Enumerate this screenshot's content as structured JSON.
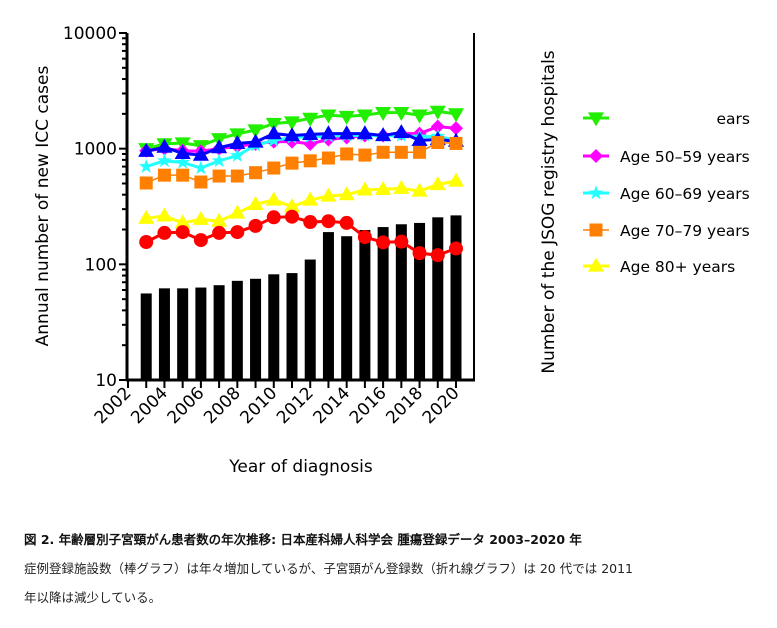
{
  "chart_data": {
    "type": "line",
    "y_scale": "log",
    "ylim": [
      10,
      10000
    ],
    "xlim": [
      2002,
      2020
    ],
    "ylabel": "Annual number of new ICC cases",
    "y2label": "Number of the JSOG registry hospitals",
    "xlabel": "Year of diagnosis",
    "ytick_labels": [
      "10",
      "100",
      "1000",
      "10000"
    ],
    "xtick_labels": [
      "2002",
      "2004",
      "2006",
      "2008",
      "2010",
      "2012",
      "2014",
      "2016",
      "2018",
      "2020"
    ],
    "legend_placement": "right",
    "x": [
      2003,
      2004,
      2005,
      2006,
      2007,
      2008,
      2009,
      2010,
      2011,
      2012,
      2013,
      2014,
      2015,
      2016,
      2017,
      2018,
      2019,
      2020
    ],
    "bars": {
      "key": "hospitals",
      "color": "#000000",
      "values": [
        56,
        62,
        62,
        63,
        66,
        72,
        75,
        82,
        84,
        110,
        190,
        175,
        198,
        210,
        222,
        228,
        255,
        265
      ]
    },
    "series": [
      {
        "key": "green",
        "legend": "ears",
        "color": "#22ee00",
        "marker": "triangle-down",
        "values": [
          1000,
          1100,
          1120,
          1060,
          1220,
          1340,
          1450,
          1650,
          1700,
          1830,
          1950,
          1900,
          1950,
          2050,
          2050,
          1950,
          2100,
          2000
        ]
      },
      {
        "key": "magenta",
        "legend": "Age 50–59 years",
        "color": "#ff00ff",
        "marker": "diamond",
        "values": [
          960,
          1000,
          960,
          950,
          1000,
          1050,
          1100,
          1150,
          1150,
          1100,
          1200,
          1250,
          1300,
          1300,
          1350,
          1350,
          1550,
          1500
        ]
      },
      {
        "key": "cyan",
        "legend": "Age 60–69 years",
        "color": "#22ffff",
        "marker": "star",
        "values": [
          700,
          785,
          760,
          680,
          785,
          870,
          1070,
          1180,
          1250,
          1270,
          1280,
          1300,
          1300,
          1290,
          1300,
          1260,
          1280,
          1180
        ]
      },
      {
        "key": "blue",
        "color": "#0000ff",
        "marker": "triangle-up",
        "values": [
          950,
          1030,
          910,
          880,
          1020,
          1110,
          1140,
          1350,
          1300,
          1330,
          1350,
          1350,
          1350,
          1300,
          1380,
          1180,
          1200,
          1160
        ]
      },
      {
        "key": "orange",
        "legend": "Age 70–79 years",
        "color": "#ff8000",
        "marker": "square",
        "values": [
          505,
          590,
          590,
          515,
          580,
          580,
          620,
          680,
          750,
          785,
          830,
          900,
          880,
          930,
          930,
          930,
          1130,
          1110
        ]
      },
      {
        "key": "yellow",
        "legend": "Age 80+ years",
        "color": "#ffff00",
        "marker": "triangle-up",
        "values": [
          250,
          262,
          228,
          245,
          236,
          278,
          330,
          360,
          315,
          360,
          390,
          400,
          440,
          445,
          455,
          430,
          490,
          525
        ]
      },
      {
        "key": "red",
        "color": "#ff0000",
        "marker": "circle",
        "values": [
          156,
          187,
          190,
          162,
          187,
          190,
          215,
          255,
          258,
          232,
          236,
          228,
          172,
          155,
          157,
          125,
          120,
          137
        ]
      }
    ]
  },
  "caption": {
    "title": "図 2. 年齢層別子宮頸がん患者数の年次推移: 日本産科婦人科学会 腫瘍登録データ 2003–2020 年",
    "line1": "症例登録施設数（棒グラフ）は年々増加しているが、子宮頸がん登録数（折れ線グラフ）は 20 代では 2011",
    "line2": "年以降は減少している。"
  }
}
